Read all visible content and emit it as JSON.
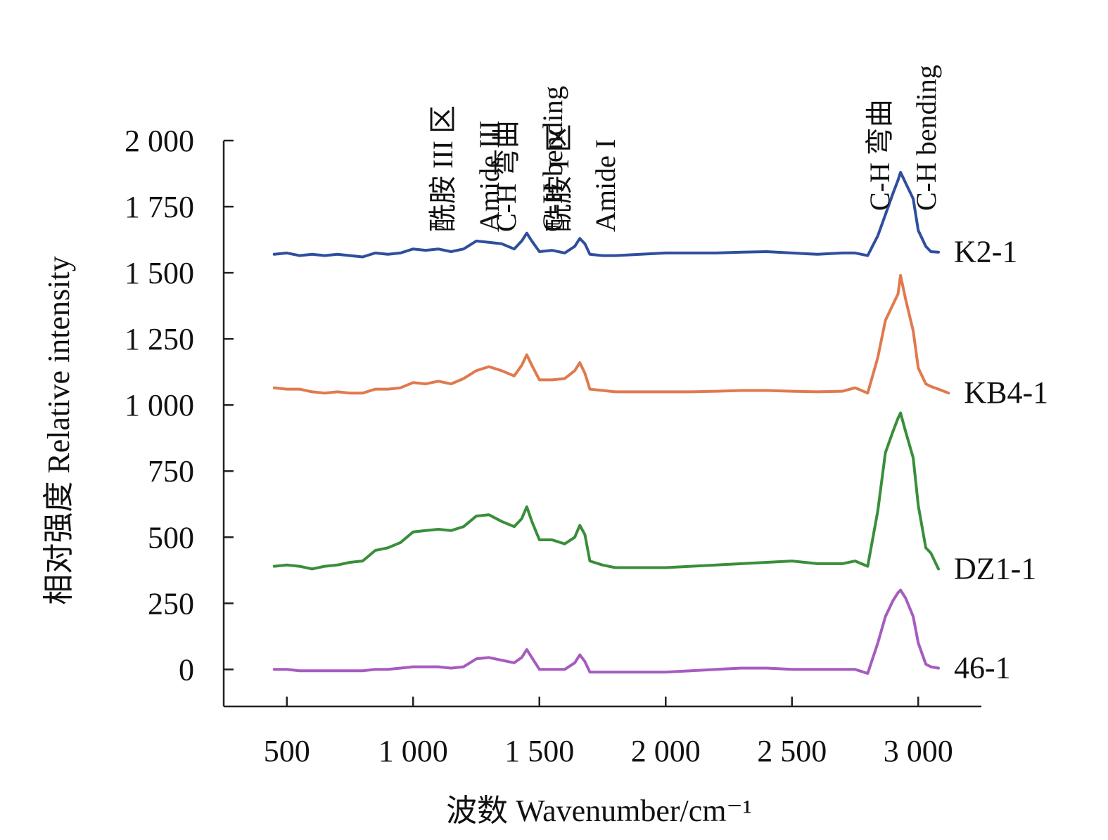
{
  "chart_data": {
    "type": "line",
    "xlabel": "波数 Wavenumber/cm⁻¹",
    "ylabel": "相对强度 Relative intensity",
    "xlim": [
      250,
      3250
    ],
    "ylim": [
      -140,
      2000
    ],
    "x_ticks": [
      500,
      1000,
      1500,
      2000,
      2500,
      3000
    ],
    "x_tick_labels": [
      "500",
      "1 000",
      "1 500",
      "2 000",
      "2 500",
      "3 000"
    ],
    "y_ticks": [
      0,
      250,
      500,
      750,
      1000,
      1250,
      1500,
      1750,
      2000
    ],
    "y_tick_labels": [
      "0",
      "250",
      "500",
      "750",
      "1 000",
      "1 250",
      "1 500",
      "1 750",
      "2 000"
    ],
    "grid": false,
    "annotations": [
      {
        "lines": [
          "酰胺 III 区",
          "Amide III"
        ],
        "x": 1200
      },
      {
        "lines": [
          "C-H 弯曲",
          "C-H bending"
        ],
        "x": 1450
      },
      {
        "lines": [
          "酰胺 I 区",
          "Amide I"
        ],
        "x": 1660
      },
      {
        "lines": [
          "C-H 弯曲",
          "C-H bending"
        ],
        "x": 2930
      }
    ],
    "series": [
      {
        "name": "K2-1",
        "color": "#2f4f9e",
        "x": [
          450,
          500,
          550,
          600,
          650,
          700,
          750,
          800,
          850,
          900,
          950,
          1000,
          1050,
          1100,
          1150,
          1200,
          1250,
          1300,
          1350,
          1400,
          1430,
          1450,
          1470,
          1500,
          1550,
          1600,
          1640,
          1660,
          1680,
          1700,
          1750,
          1800,
          1900,
          2000,
          2100,
          2200,
          2300,
          2400,
          2500,
          2600,
          2700,
          2750,
          2800,
          2840,
          2870,
          2900,
          2920,
          2930,
          2950,
          2980,
          3000,
          3030,
          3050,
          3080
        ],
        "values": [
          1570,
          1575,
          1565,
          1570,
          1565,
          1570,
          1565,
          1560,
          1575,
          1570,
          1575,
          1590,
          1585,
          1590,
          1580,
          1590,
          1620,
          1615,
          1610,
          1590,
          1620,
          1650,
          1620,
          1580,
          1585,
          1575,
          1600,
          1630,
          1610,
          1570,
          1565,
          1565,
          1570,
          1575,
          1575,
          1575,
          1578,
          1580,
          1575,
          1570,
          1575,
          1575,
          1565,
          1640,
          1720,
          1800,
          1850,
          1880,
          1840,
          1780,
          1660,
          1600,
          1580,
          1578
        ]
      },
      {
        "name": "KB4-1",
        "color": "#e07a4e",
        "x": [
          450,
          500,
          550,
          600,
          650,
          700,
          750,
          800,
          850,
          900,
          950,
          1000,
          1050,
          1100,
          1150,
          1200,
          1250,
          1300,
          1350,
          1400,
          1430,
          1450,
          1470,
          1500,
          1550,
          1600,
          1640,
          1660,
          1680,
          1700,
          1750,
          1800,
          1900,
          2000,
          2100,
          2200,
          2300,
          2400,
          2500,
          2600,
          2700,
          2750,
          2800,
          2840,
          2870,
          2900,
          2920,
          2930,
          2950,
          2980,
          3000,
          3030,
          3050,
          3080,
          3120
        ],
        "values": [
          1065,
          1060,
          1060,
          1050,
          1045,
          1050,
          1045,
          1045,
          1060,
          1060,
          1065,
          1085,
          1080,
          1090,
          1080,
          1100,
          1130,
          1145,
          1130,
          1110,
          1150,
          1190,
          1150,
          1095,
          1095,
          1100,
          1130,
          1160,
          1120,
          1060,
          1055,
          1050,
          1050,
          1050,
          1050,
          1052,
          1055,
          1055,
          1052,
          1050,
          1052,
          1065,
          1045,
          1180,
          1320,
          1380,
          1420,
          1490,
          1400,
          1280,
          1140,
          1080,
          1070,
          1060,
          1045
        ]
      },
      {
        "name": "DZ1-1",
        "color": "#3a8e3a",
        "x": [
          450,
          500,
          550,
          600,
          650,
          700,
          750,
          800,
          850,
          900,
          950,
          1000,
          1050,
          1100,
          1150,
          1200,
          1250,
          1300,
          1350,
          1400,
          1430,
          1450,
          1470,
          1500,
          1550,
          1600,
          1640,
          1660,
          1680,
          1700,
          1750,
          1800,
          1900,
          2000,
          2100,
          2200,
          2300,
          2400,
          2500,
          2600,
          2700,
          2750,
          2800,
          2840,
          2870,
          2900,
          2920,
          2930,
          2950,
          2980,
          3000,
          3030,
          3050,
          3080
        ],
        "values": [
          390,
          395,
          390,
          380,
          390,
          395,
          405,
          410,
          450,
          460,
          480,
          520,
          525,
          530,
          525,
          540,
          580,
          585,
          560,
          540,
          570,
          615,
          560,
          490,
          490,
          475,
          500,
          545,
          510,
          410,
          395,
          385,
          385,
          385,
          390,
          395,
          400,
          405,
          410,
          400,
          400,
          410,
          390,
          600,
          820,
          900,
          950,
          970,
          900,
          800,
          620,
          460,
          440,
          380
        ]
      },
      {
        "name": "46-1",
        "color": "#a65cbf",
        "x": [
          450,
          500,
          550,
          600,
          650,
          700,
          750,
          800,
          850,
          900,
          950,
          1000,
          1050,
          1100,
          1150,
          1200,
          1250,
          1300,
          1350,
          1400,
          1430,
          1450,
          1470,
          1500,
          1550,
          1600,
          1640,
          1660,
          1680,
          1700,
          1750,
          1800,
          1900,
          2000,
          2100,
          2200,
          2300,
          2400,
          2500,
          2600,
          2700,
          2750,
          2800,
          2840,
          2870,
          2900,
          2920,
          2930,
          2950,
          2980,
          3000,
          3030,
          3050,
          3080
        ],
        "values": [
          0,
          0,
          -5,
          -5,
          -5,
          -5,
          -5,
          -5,
          0,
          0,
          5,
          10,
          10,
          10,
          5,
          10,
          40,
          45,
          35,
          25,
          45,
          75,
          45,
          0,
          0,
          0,
          25,
          55,
          30,
          -10,
          -10,
          -10,
          -10,
          -10,
          -5,
          0,
          5,
          5,
          0,
          0,
          0,
          0,
          -15,
          100,
          200,
          260,
          290,
          300,
          270,
          200,
          100,
          20,
          10,
          5
        ]
      }
    ]
  }
}
